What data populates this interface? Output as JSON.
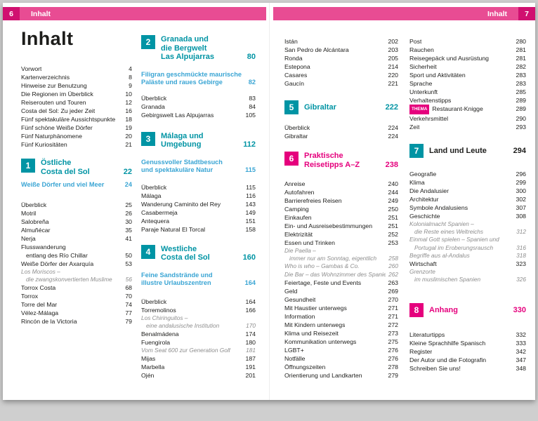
{
  "colors": {
    "bar": "#e84c93",
    "barbox": "#d01070",
    "teal": "#0094a4",
    "pink": "#e5007d",
    "blue": "#3aa5d4"
  },
  "header_left": {
    "page": "6",
    "label": "Inhalt"
  },
  "header_right": {
    "page": "7",
    "label": "Inhalt"
  },
  "title": "Inhalt",
  "columns": [
    [
      {
        "t": "e",
        "n": "Vorwort",
        "p": "4"
      },
      {
        "t": "e",
        "n": "Kartenverzeichnis",
        "p": "8"
      },
      {
        "t": "e",
        "n": "Hinweise zur Benutzung",
        "p": "9"
      },
      {
        "t": "e",
        "n": "Die Regionen im Überblick",
        "p": "10"
      },
      {
        "t": "e",
        "n": "Reiserouten und Touren",
        "p": "12"
      },
      {
        "t": "e",
        "n": "Costa del Sol: Zu jeder Zeit",
        "p": "16"
      },
      {
        "t": "e",
        "n": "Fünf spektakuläre Aussichtspunkte",
        "p": "18"
      },
      {
        "t": "e",
        "n": "Fünf schöne Weiße Dörfer",
        "p": "19"
      },
      {
        "t": "e",
        "n": "Fünf Naturphänomene",
        "p": "20"
      },
      {
        "t": "e",
        "n": "Fünf Kuriositäten",
        "p": "21"
      },
      {
        "t": "g",
        "h": 12
      },
      {
        "t": "s",
        "num": "1",
        "lines": [
          "Östliche",
          "Costa del Sol"
        ],
        "p": "22",
        "c": "teal",
        "tc": "teal"
      },
      {
        "t": "sub",
        "lines": [
          "Weiße Dörfer und viel Meer"
        ],
        "p": "24"
      },
      {
        "t": "g",
        "h": 10
      },
      {
        "t": "e",
        "n": "Überblick",
        "p": "25"
      },
      {
        "t": "e",
        "n": "Motril",
        "p": "26"
      },
      {
        "t": "e",
        "n": "Salobreña",
        "p": "30"
      },
      {
        "t": "e",
        "n": "Almuñécar",
        "p": "35"
      },
      {
        "t": "e",
        "n": "Nerja",
        "p": "41"
      },
      {
        "t": "e2",
        "l1": "Flusswanderung",
        "l2": "entlang des Río Chillar",
        "p": "50"
      },
      {
        "t": "e",
        "n": "Weiße Dörfer der Axarquía",
        "p": "53"
      },
      {
        "t": "i2",
        "l1": "Los Moriscos –",
        "l2": "die zwangskonvertierten Muslime",
        "p": "56"
      },
      {
        "t": "e",
        "n": "Torrox Costa",
        "p": "68"
      },
      {
        "t": "e",
        "n": "Torrox",
        "p": "70"
      },
      {
        "t": "e",
        "n": "Torre del Mar",
        "p": "74"
      },
      {
        "t": "e",
        "n": "Vélez-Málaga",
        "p": "77"
      },
      {
        "t": "e",
        "n": "Rincón de la Victoria",
        "p": "79"
      }
    ],
    [
      {
        "t": "s",
        "num": "2",
        "lines": [
          "Granada und",
          "die Bergwelt",
          "Las Alpujarras"
        ],
        "p": "80",
        "c": "teal",
        "tc": "teal"
      },
      {
        "t": "g",
        "h": 4
      },
      {
        "t": "sub",
        "lines": [
          "Filigran geschmückte maurische",
          "Paläste und raues Gebirge"
        ],
        "p": "82"
      },
      {
        "t": "g",
        "h": 4
      },
      {
        "t": "e",
        "n": "Überblick",
        "p": "83"
      },
      {
        "t": "e",
        "n": "Granada",
        "p": "84"
      },
      {
        "t": "e",
        "n": "Gebirgswelt Las Alpujarras",
        "p": "105"
      },
      {
        "t": "g",
        "h": 16
      },
      {
        "t": "s",
        "num": "3",
        "lines": [
          "Málaga und",
          "Umgebung"
        ],
        "p": "112",
        "c": "teal",
        "tc": "teal"
      },
      {
        "t": "g",
        "h": 4
      },
      {
        "t": "sub",
        "lines": [
          "Genussvoller Stadtbesuch",
          "und spektakuläre Natur"
        ],
        "p": "115"
      },
      {
        "t": "g",
        "h": 6
      },
      {
        "t": "e",
        "n": "Überblick",
        "p": "115"
      },
      {
        "t": "e",
        "n": "Málaga",
        "p": "116"
      },
      {
        "t": "e",
        "n": "Wanderung Caminito del Rey",
        "p": "143"
      },
      {
        "t": "e",
        "n": "Casabermeja",
        "p": "149"
      },
      {
        "t": "e",
        "n": "Antequera",
        "p": "151"
      },
      {
        "t": "e",
        "n": "Paraje Natural El Torcal",
        "p": "158"
      },
      {
        "t": "g",
        "h": 14
      },
      {
        "t": "s",
        "num": "4",
        "lines": [
          "Westliche",
          "Costa del Sol"
        ],
        "p": "160",
        "c": "teal",
        "tc": "teal"
      },
      {
        "t": "g",
        "h": 4
      },
      {
        "t": "sub",
        "lines": [
          "Feine Sandstrände und",
          "illustre Urlaubszentren"
        ],
        "p": "164"
      },
      {
        "t": "g",
        "h": 8
      },
      {
        "t": "e",
        "n": "Überblick",
        "p": "164"
      },
      {
        "t": "e",
        "n": "Torremolinos",
        "p": "166"
      },
      {
        "t": "i2",
        "l1": "Los Chiringuitos –",
        "l2": "eine andalusische Institution",
        "p": "170"
      },
      {
        "t": "e",
        "n": "Benalmádena",
        "p": "174"
      },
      {
        "t": "e",
        "n": "Fuengirola",
        "p": "180"
      },
      {
        "t": "i",
        "n": "Vom Seat 600 zur Generation Golf",
        "p": "181"
      },
      {
        "t": "e",
        "n": "Mijas",
        "p": "187"
      },
      {
        "t": "e",
        "n": "Marbella",
        "p": "191"
      },
      {
        "t": "e",
        "n": "Ojén",
        "p": "201"
      }
    ],
    [
      {
        "t": "e",
        "n": "Istán",
        "p": "202"
      },
      {
        "t": "e",
        "n": "San Pedro de Alcántara",
        "p": "203"
      },
      {
        "t": "e",
        "n": "Ronda",
        "p": "205"
      },
      {
        "t": "e",
        "n": "Estepona",
        "p": "214"
      },
      {
        "t": "e",
        "n": "Casares",
        "p": "220"
      },
      {
        "t": "e",
        "n": "Gaucín",
        "p": "221"
      },
      {
        "t": "g",
        "h": 16
      },
      {
        "t": "s",
        "num": "5",
        "lines": [
          "Gibraltar"
        ],
        "p": "222",
        "c": "teal",
        "tc": "teal"
      },
      {
        "t": "g",
        "h": 6
      },
      {
        "t": "e",
        "n": "Überblick",
        "p": "224"
      },
      {
        "t": "e",
        "n": "Gibraltar",
        "p": "224"
      },
      {
        "t": "g",
        "h": 14
      },
      {
        "t": "s",
        "num": "6",
        "lines": [
          "Praktische",
          "Reisetipps A–Z"
        ],
        "p": "238",
        "c": "pink",
        "tc": "pink"
      },
      {
        "t": "g",
        "h": 8
      },
      {
        "t": "e",
        "n": "Anreise",
        "p": "240"
      },
      {
        "t": "e",
        "n": "Autofahren",
        "p": "244"
      },
      {
        "t": "e",
        "n": "Barrierefreies Reisen",
        "p": "249"
      },
      {
        "t": "e",
        "n": "Camping",
        "p": "250"
      },
      {
        "t": "e",
        "n": "Einkaufen",
        "p": "251"
      },
      {
        "t": "e",
        "n": "Ein- und Ausreisebestimmungen",
        "p": "251"
      },
      {
        "t": "e",
        "n": "Elektrizität",
        "p": "252"
      },
      {
        "t": "e",
        "n": "Essen und Trinken",
        "p": "253"
      },
      {
        "t": "i2",
        "l1": "Die Paella –",
        "l2": "immer nur am Sonntag, eigentlich",
        "p": "258"
      },
      {
        "t": "i",
        "n": "Who is who – Gambas & Co.",
        "p": "260"
      },
      {
        "t": "i",
        "n": "Die Bar – das Wohnzimmer des Spaniers",
        "p": "262"
      },
      {
        "t": "e",
        "n": "Feiertage, Feste und Events",
        "p": "263"
      },
      {
        "t": "e",
        "n": "Geld",
        "p": "269"
      },
      {
        "t": "e",
        "n": "Gesundheit",
        "p": "270"
      },
      {
        "t": "e",
        "n": "Mit Haustier unterwegs",
        "p": "271"
      },
      {
        "t": "e",
        "n": "Information",
        "p": "271"
      },
      {
        "t": "e",
        "n": "Mit Kindern unterwegs",
        "p": "272"
      },
      {
        "t": "e",
        "n": "Klima und Reisezeit",
        "p": "273"
      },
      {
        "t": "e",
        "n": "Kommunikation unterwegs",
        "p": "275"
      },
      {
        "t": "e",
        "n": "LGBT+",
        "p": "276"
      },
      {
        "t": "e",
        "n": "Notfälle",
        "p": "276"
      },
      {
        "t": "e",
        "n": "Öffnungszeiten",
        "p": "278"
      },
      {
        "t": "e",
        "n": "Orientierung und Landkarten",
        "p": "279"
      }
    ],
    [
      {
        "t": "e",
        "n": "Post",
        "p": "280"
      },
      {
        "t": "e",
        "n": "Rauchen",
        "p": "281"
      },
      {
        "t": "e",
        "n": "Reisegepäck und Ausrüstung",
        "p": "281"
      },
      {
        "t": "e",
        "n": "Sicherheit",
        "p": "282"
      },
      {
        "t": "e",
        "n": "Sport und Aktivitäten",
        "p": "283"
      },
      {
        "t": "e",
        "n": "Sprache",
        "p": "283"
      },
      {
        "t": "e",
        "n": "Unterkunft",
        "p": "285"
      },
      {
        "t": "e",
        "n": "Verhaltenstipps",
        "p": "289"
      },
      {
        "t": "th",
        "badge": "THEMA",
        "n": "Restaurant-Knigge",
        "p": "289"
      },
      {
        "t": "e",
        "n": "Verkehrsmittel",
        "p": "290"
      },
      {
        "t": "e",
        "n": "Zeit",
        "p": "293"
      },
      {
        "t": "g",
        "h": 16
      },
      {
        "t": "s",
        "num": "7",
        "lines": [
          "Land und Leute"
        ],
        "p": "294",
        "c": "teal",
        "tc": "dark"
      },
      {
        "t": "g",
        "h": 10
      },
      {
        "t": "e",
        "n": "Geografie",
        "p": "296"
      },
      {
        "t": "e",
        "n": "Klima",
        "p": "299"
      },
      {
        "t": "e",
        "n": "Die Andalusier",
        "p": "300"
      },
      {
        "t": "e",
        "n": "Architektur",
        "p": "302"
      },
      {
        "t": "e",
        "n": "Symbole Andalusiens",
        "p": "307"
      },
      {
        "t": "e",
        "n": "Geschichte",
        "p": "308"
      },
      {
        "t": "i2",
        "l1": "Kolonialmacht Spanien –",
        "l2": "die Reste eines Weltreichs",
        "p": "312"
      },
      {
        "t": "i2",
        "l1": "Einmal Gott spielen – Spanien und",
        "l2": "Portugal im Eroberungsrausch",
        "p": "316"
      },
      {
        "t": "i",
        "n": "Begriffe aus al-Andalus",
        "p": "318"
      },
      {
        "t": "e",
        "n": "Wirtschaft",
        "p": "323"
      },
      {
        "t": "i2",
        "l1": "Grenzorte",
        "l2": "im muslimischen Spanien",
        "p": "326"
      },
      {
        "t": "g",
        "h": 26
      },
      {
        "t": "s",
        "num": "8",
        "lines": [
          "Anhang"
        ],
        "p": "330",
        "c": "pink",
        "tc": "pink"
      },
      {
        "t": "g",
        "h": 12
      },
      {
        "t": "e",
        "n": "Literaturtipps",
        "p": "332"
      },
      {
        "t": "e",
        "n": "Kleine Sprachhilfe Spanisch",
        "p": "333"
      },
      {
        "t": "e",
        "n": "Register",
        "p": "342"
      },
      {
        "t": "e",
        "n": "Der Autor und die Fotografin",
        "p": "347"
      },
      {
        "t": "e",
        "n": "Schreiben Sie uns!",
        "p": "348"
      }
    ]
  ]
}
